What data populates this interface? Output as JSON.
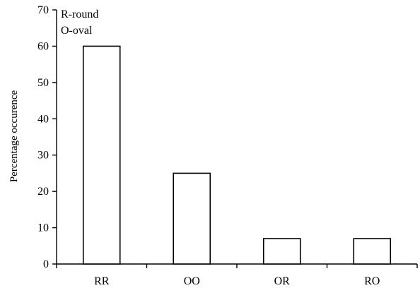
{
  "chart_data": {
    "type": "bar",
    "categories": [
      "RR",
      "OO",
      "OR",
      "RO"
    ],
    "values": [
      60,
      25,
      7,
      7
    ],
    "title": "",
    "xlabel": "",
    "ylabel": "Percentage occurence",
    "ylim": [
      0,
      70
    ],
    "yticks": [
      0,
      10,
      20,
      30,
      40,
      50,
      60,
      70
    ],
    "grid": false,
    "annotations": [
      "R-round",
      "O-oval"
    ],
    "bar_fill": "#ffffff",
    "bar_edge": "#000000"
  }
}
